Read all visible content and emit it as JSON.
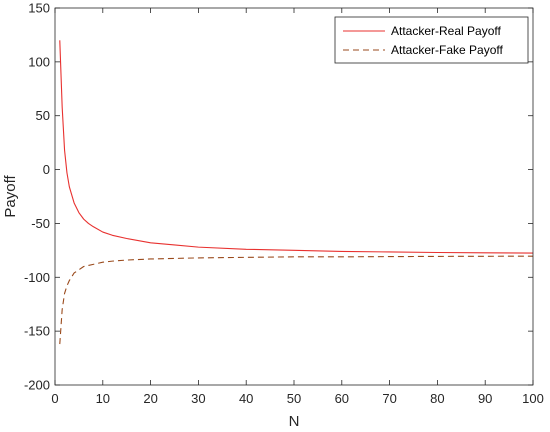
{
  "chart_data": {
    "type": "line",
    "xlabel": "N",
    "ylabel": "Payoff",
    "xlim": [
      0,
      100
    ],
    "ylim": [
      -200,
      150
    ],
    "xticks": [
      0,
      10,
      20,
      30,
      40,
      50,
      60,
      70,
      80,
      90,
      100
    ],
    "yticks": [
      -200,
      -150,
      -100,
      -50,
      0,
      50,
      100,
      150
    ],
    "x_tick_labels": [
      "0",
      "10",
      "20",
      "30",
      "40",
      "50",
      "60",
      "70",
      "80",
      "90",
      "100"
    ],
    "y_tick_labels": [
      "-200",
      "-150",
      "-100",
      "-50",
      "0",
      "50",
      "100",
      "150"
    ],
    "grid": false,
    "legend_position": "top-right",
    "series": [
      {
        "name": "Attacker-Real Payoff",
        "style": "solid",
        "color": "#e8312f",
        "x": [
          1,
          1.5,
          2,
          2.5,
          3,
          4,
          5,
          6,
          7,
          8,
          10,
          12,
          15,
          20,
          25,
          30,
          40,
          50,
          60,
          70,
          80,
          90,
          100
        ],
        "y": [
          120,
          58,
          18,
          -3,
          -16,
          -31,
          -40,
          -46,
          -50,
          -53,
          -58,
          -61,
          -64,
          -68,
          -70,
          -72,
          -74,
          -75,
          -76,
          -76.5,
          -77,
          -77.3,
          -77.5
        ]
      },
      {
        "name": "Attacker-Fake Payoff",
        "style": "dashed",
        "color": "#9a4a1c",
        "x": [
          1,
          1.5,
          2,
          2.5,
          3,
          4,
          5,
          6,
          7,
          8,
          10,
          12,
          15,
          20,
          25,
          30,
          40,
          50,
          60,
          70,
          80,
          90,
          100
        ],
        "y": [
          -162,
          -130,
          -115,
          -108,
          -103,
          -96,
          -93,
          -90,
          -89,
          -88,
          -86,
          -85,
          -84,
          -83,
          -82.5,
          -82,
          -81.5,
          -81,
          -81,
          -80.8,
          -80.6,
          -80.5,
          -80.4
        ]
      }
    ]
  }
}
